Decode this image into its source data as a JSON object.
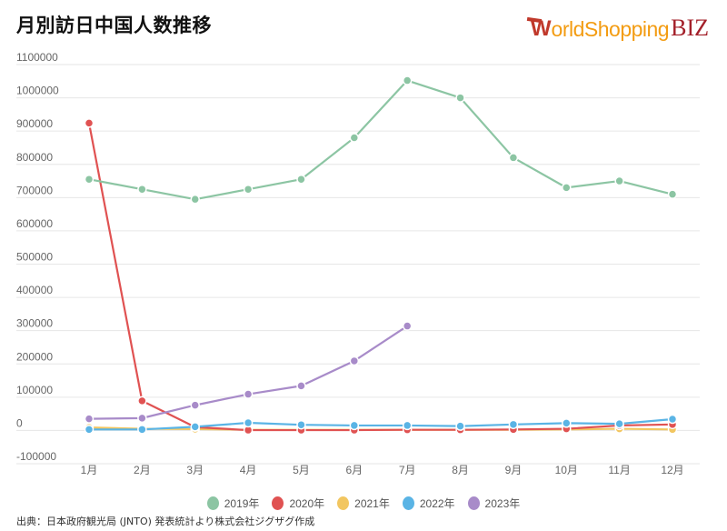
{
  "header": {
    "title": "月別訪日中国人数推移",
    "logo": {
      "prefix": "W",
      "main": "orldShopping",
      "suffix": "BIZ"
    }
  },
  "source_note": "出典：日本政府観光局 (JNTO) 発表統計より株式会社ジグザグ作成",
  "chart_data": {
    "type": "line",
    "title": "月別訪日中国人数推移",
    "xlabel": "",
    "ylabel": "",
    "ylim": [
      -100000,
      1100000
    ],
    "yticks": [
      1100000,
      1000000,
      900000,
      800000,
      700000,
      600000,
      500000,
      400000,
      300000,
      200000,
      100000,
      0,
      -100000
    ],
    "ytick_labels": [
      "1100000",
      "1000000",
      "900000",
      "800000",
      "700000",
      "600000",
      "500000",
      "400000",
      "300000",
      "200000",
      "100000",
      "0",
      "-100000"
    ],
    "categories": [
      "1月",
      "2月",
      "3月",
      "4月",
      "5月",
      "6月",
      "7月",
      "8月",
      "9月",
      "10月",
      "11月",
      "12月"
    ],
    "grid": true,
    "legend_position": "bottom",
    "series": [
      {
        "name": "2019年",
        "color": "#8cc5a3",
        "values": [
          755000,
          725000,
          695000,
          725000,
          755000,
          880000,
          1052000,
          1000000,
          820000,
          730000,
          750000,
          710000
        ]
      },
      {
        "name": "2020年",
        "color": "#e05252",
        "values": [
          924000,
          89000,
          10000,
          1000,
          1000,
          1000,
          2000,
          2000,
          3000,
          5000,
          15000,
          18000
        ]
      },
      {
        "name": "2021年",
        "color": "#f2c660",
        "values": [
          9000,
          5000,
          4000,
          2000,
          2000,
          2000,
          2000,
          2000,
          2000,
          3000,
          5000,
          3000
        ]
      },
      {
        "name": "2022年",
        "color": "#5ab4e5",
        "values": [
          3000,
          3000,
          11000,
          23000,
          17000,
          15000,
          15000,
          13000,
          18000,
          22000,
          20000,
          34000
        ]
      },
      {
        "name": "2023年",
        "color": "#a88bc9",
        "values": [
          35000,
          37000,
          76000,
          109000,
          134000,
          209000,
          314000
        ]
      }
    ]
  },
  "legend": [
    {
      "label": "2019年",
      "color": "#8cc5a3"
    },
    {
      "label": "2020年",
      "color": "#e05252"
    },
    {
      "label": "2021年",
      "color": "#f2c660"
    },
    {
      "label": "2022年",
      "color": "#5ab4e5"
    },
    {
      "label": "2023年",
      "color": "#a88bc9"
    }
  ]
}
